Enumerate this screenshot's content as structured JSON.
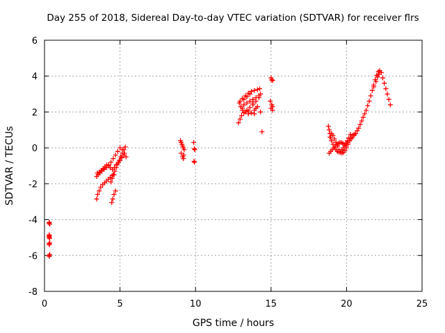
{
  "chart_data": {
    "type": "scatter",
    "title": "Day 255 of 2018, Sidereal Day-to-day VTEC variation (SDTVAR) for receiver flrs",
    "xlabel": "GPS time / hours",
    "ylabel": "SDTVAR / TECUs",
    "xlim": [
      0,
      25
    ],
    "ylim": [
      -8,
      6
    ],
    "xticks": [
      "0",
      "5",
      "10",
      "15",
      "20",
      "25"
    ],
    "yticks": [
      "-8",
      "-6",
      "-4",
      "-2",
      "0",
      "2",
      "4",
      "6"
    ],
    "grid": true,
    "marker": "plus",
    "color": "#ff0000",
    "x": [
      0.3,
      0.32,
      0.35,
      0.3,
      0.32,
      0.33,
      0.3,
      0.32,
      0.35,
      0.3,
      0.32,
      0.35,
      0.3,
      0.34,
      3.45,
      3.52,
      3.62,
      3.72,
      3.85,
      3.98,
      4.1,
      4.22,
      4.35,
      4.48,
      4.6,
      4.45,
      4.52,
      4.6,
      4.7,
      3.5,
      3.62,
      3.75,
      3.88,
      4.0,
      4.12,
      4.25,
      4.35,
      4.5,
      4.63,
      4.75,
      4.9,
      5.0,
      5.12,
      5.25,
      3.45,
      3.55,
      3.68,
      3.8,
      3.95,
      4.1,
      4.25,
      4.4,
      4.55,
      4.7,
      4.85,
      5.0,
      5.15,
      5.3,
      5.4,
      4.4,
      4.48,
      4.55,
      4.65,
      4.75,
      4.85,
      4.95,
      5.05,
      5.15,
      5.25,
      5.35,
      9.0,
      9.05,
      9.1,
      9.15,
      9.2,
      9.25,
      9.05,
      9.15,
      9.2,
      9.22,
      9.88,
      9.92,
      9.95,
      9.9,
      9.93,
      12.85,
      12.95,
      13.05,
      13.2,
      13.4,
      13.6,
      13.8,
      14.0,
      14.2,
      14.3,
      12.95,
      13.1,
      13.3,
      13.5,
      13.7,
      13.9,
      14.1,
      14.25,
      13.0,
      13.2,
      13.4,
      13.6,
      13.8,
      14.0,
      14.2,
      12.9,
      13.1,
      13.3,
      13.5,
      13.7,
      13.9,
      14.1,
      13.2,
      13.4,
      13.6,
      13.8,
      14.0,
      13.1,
      13.5,
      13.9,
      14.3,
      14.4,
      15.0,
      15.05,
      15.1,
      15.0,
      15.05,
      15.1,
      14.95,
      15.1,
      18.8,
      18.85,
      18.9,
      18.95,
      19.0,
      19.1,
      19.2,
      19.3,
      19.4,
      19.5,
      19.6,
      19.7,
      19.8,
      19.9,
      20.0,
      20.1,
      20.2,
      20.3,
      20.4,
      20.5,
      20.6,
      20.7,
      20.8,
      20.9,
      21.0,
      21.1,
      21.2,
      21.3,
      21.4,
      21.5,
      21.6,
      21.7,
      21.8,
      21.9,
      22.0,
      22.1,
      22.2,
      22.3,
      22.4,
      22.5,
      22.6,
      22.7,
      22.8,
      22.9,
      18.85,
      18.95,
      19.05,
      19.15,
      19.25,
      19.35,
      19.45,
      19.55,
      19.65,
      19.75,
      19.85,
      19.95,
      20.05,
      20.15,
      20.25,
      18.9,
      19.0,
      19.1,
      19.2,
      19.3,
      19.4,
      19.5,
      19.6,
      19.7,
      19.8,
      19.9,
      20.0,
      20.1,
      20.2,
      20.3,
      20.4,
      20.5,
      21.8,
      21.95,
      22.05,
      22.15
    ],
    "y": [
      -4.2,
      -4.15,
      -4.25,
      -4.95,
      -5.0,
      -4.9,
      -5.35,
      -5.4,
      -5.3,
      -6.0,
      -6.05,
      -5.95,
      -4.85,
      -5.05,
      -2.85,
      -2.6,
      -2.4,
      -2.2,
      -2.05,
      -1.95,
      -1.85,
      -1.75,
      -1.65,
      -1.55,
      -1.5,
      -3.05,
      -2.85,
      -2.6,
      -2.4,
      -1.4,
      -1.35,
      -1.25,
      -1.15,
      -1.05,
      -0.95,
      -1.0,
      -1.1,
      -1.2,
      -1.1,
      -0.95,
      -0.8,
      -0.7,
      -0.55,
      -0.4,
      -1.6,
      -1.5,
      -1.4,
      -1.3,
      -1.2,
      -1.1,
      -0.95,
      -0.8,
      -0.6,
      -0.4,
      -0.2,
      0.0,
      -0.1,
      -0.3,
      -0.5,
      -1.9,
      -1.7,
      -1.5,
      -1.3,
      -1.1,
      -0.9,
      -0.7,
      -0.5,
      -0.3,
      -0.1,
      0.05,
      0.4,
      0.3,
      0.2,
      0.1,
      0.0,
      -0.1,
      -0.3,
      -0.5,
      -0.6,
      -0.4,
      0.3,
      -0.05,
      -0.1,
      -0.75,
      -0.8,
      1.4,
      1.6,
      1.8,
      1.95,
      2.1,
      2.25,
      2.4,
      2.6,
      2.8,
      3.0,
      2.6,
      2.75,
      2.9,
      3.05,
      3.15,
      3.2,
      3.25,
      3.3,
      2.3,
      2.4,
      2.5,
      2.6,
      2.7,
      2.8,
      2.9,
      2.5,
      2.2,
      2.0,
      1.9,
      1.95,
      2.1,
      2.3,
      2.7,
      2.85,
      3.0,
      2.5,
      2.2,
      2.1,
      2.05,
      1.9,
      2.0,
      0.9,
      3.9,
      3.8,
      3.75,
      2.2,
      2.4,
      2.1,
      2.6,
      2.3,
      1.2,
      1.0,
      0.8,
      0.6,
      0.4,
      0.2,
      0.0,
      -0.1,
      -0.2,
      -0.25,
      -0.2,
      -0.1,
      0.0,
      0.1,
      0.2,
      0.3,
      0.4,
      0.5,
      0.6,
      0.7,
      0.8,
      0.95,
      1.1,
      1.3,
      1.5,
      1.7,
      1.9,
      2.1,
      2.35,
      2.6,
      2.9,
      3.2,
      3.5,
      3.8,
      4.05,
      4.25,
      4.3,
      4.2,
      3.9,
      3.6,
      3.3,
      3.0,
      2.7,
      2.4,
      -0.3,
      -0.2,
      -0.1,
      0.0,
      0.1,
      0.2,
      0.25,
      0.3,
      0.3,
      0.25,
      0.2,
      0.25,
      0.4,
      0.55,
      0.75,
      0.6,
      0.8,
      0.7,
      0.5,
      0.3,
      0.1,
      -0.1,
      -0.25,
      -0.3,
      -0.25,
      -0.15,
      0.0,
      0.2,
      0.4,
      0.55,
      0.7,
      0.75,
      3.4,
      3.7,
      3.95,
      4.1
    ]
  }
}
